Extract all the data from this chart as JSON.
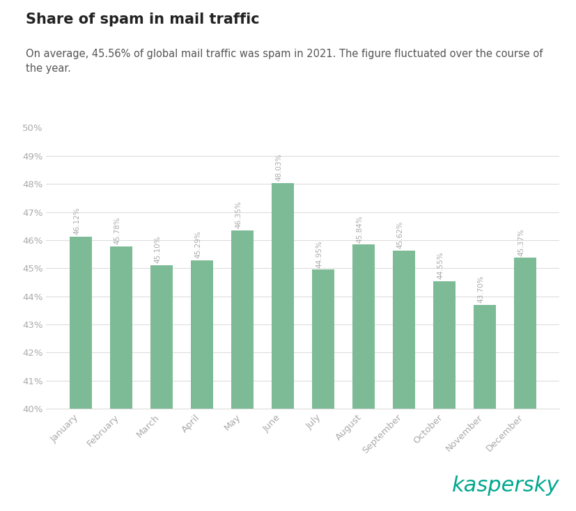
{
  "title": "Share of spam in mail traffic",
  "subtitle": "On average, 45.56% of global mail traffic was spam in 2021. The figure fluctuated over the course of\nthe year.",
  "months": [
    "January",
    "February",
    "March",
    "April",
    "May",
    "June",
    "July",
    "August",
    "September",
    "October",
    "November",
    "December"
  ],
  "values": [
    46.12,
    45.78,
    45.1,
    45.29,
    46.35,
    48.03,
    44.95,
    45.84,
    45.62,
    44.55,
    43.7,
    45.37
  ],
  "labels": [
    "46.12%",
    "45.78%",
    "45.10%",
    "45.29%",
    "46.35%",
    "48.03%",
    "44.95%",
    "45.84%",
    "45.62%",
    "44.55%",
    "43.70%",
    "45.37%"
  ],
  "bar_color": "#7dba96",
  "background_color": "#ffffff",
  "grid_color": "#dddddd",
  "ytick_color": "#aaaaaa",
  "xtick_color": "#aaaaaa",
  "label_color": "#aaaaaa",
  "title_color": "#222222",
  "subtitle_color": "#555555",
  "kaspersky_color": "#00a88e",
  "ylim_min": 40,
  "ylim_max": 50,
  "yticks": [
    40,
    41,
    42,
    43,
    44,
    45,
    46,
    47,
    48,
    49,
    50
  ],
  "title_fontsize": 15,
  "subtitle_fontsize": 10.5,
  "bar_label_fontsize": 7.5,
  "tick_fontsize": 9.5,
  "kaspersky_fontsize": 22
}
